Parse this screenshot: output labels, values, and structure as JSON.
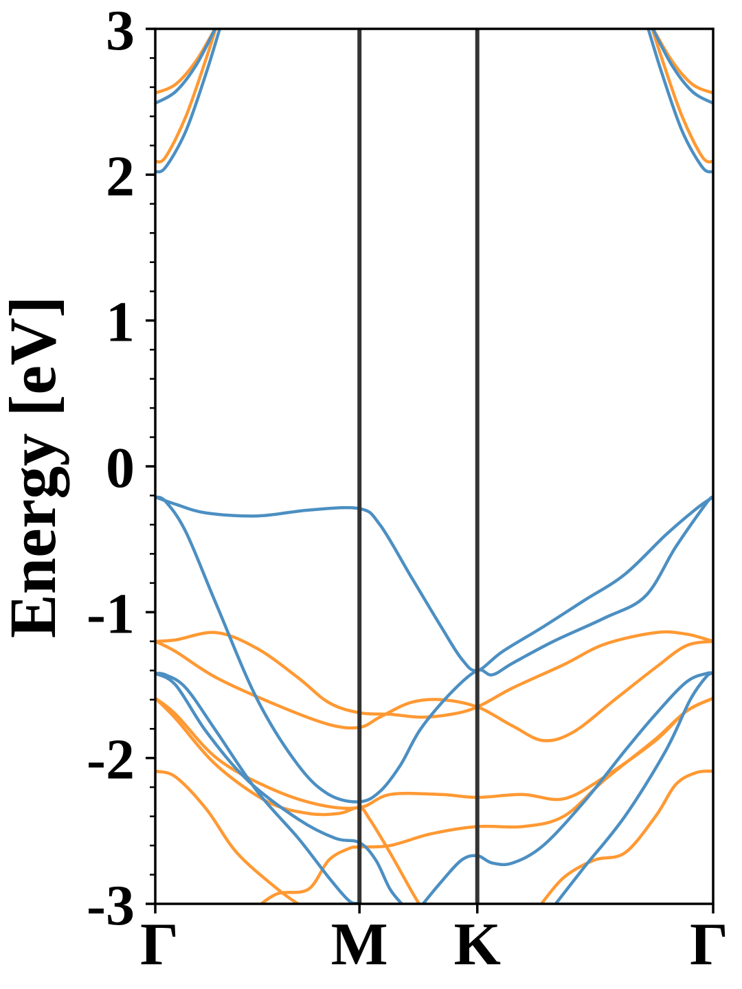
{
  "chart_data": {
    "type": "line",
    "title": "",
    "xlabel": "",
    "ylabel": "Energy [eV]",
    "ylim": [
      -3,
      3
    ],
    "yticks": [
      "-3",
      "-2",
      "-1",
      "0",
      "1",
      "2",
      "3"
    ],
    "kpath": {
      "labels": [
        "Γ",
        "M",
        "K",
        "Γ"
      ],
      "positions": [
        0,
        1,
        1.577,
        2.732
      ]
    },
    "colors": {
      "blue": "#4c8fc2",
      "orange": "#ff9933",
      "frame": "#000000",
      "kline": "#333333"
    },
    "bands_blue": [
      [
        [
          0,
          -0.21
        ],
        [
          0.1,
          -0.26
        ],
        [
          0.25,
          -0.32
        ],
        [
          0.5,
          -0.34
        ],
        [
          0.75,
          -0.3
        ],
        [
          1,
          -0.29
        ],
        [
          1.1,
          -0.4
        ],
        [
          1.25,
          -0.75
        ],
        [
          1.4,
          -1.1
        ],
        [
          1.5,
          -1.32
        ],
        [
          1.577,
          -1.4
        ],
        [
          1.7,
          -1.27
        ],
        [
          1.9,
          -1.1
        ],
        [
          2.1,
          -0.92
        ],
        [
          2.3,
          -0.74
        ],
        [
          2.5,
          -0.47
        ],
        [
          2.65,
          -0.29
        ],
        [
          2.732,
          -0.21
        ]
      ],
      [
        [
          0,
          -0.21
        ],
        [
          0.05,
          -0.24
        ],
        [
          0.15,
          -0.45
        ],
        [
          0.3,
          -0.95
        ],
        [
          0.5,
          -1.6
        ],
        [
          0.7,
          -2.05
        ],
        [
          0.85,
          -2.25
        ],
        [
          1,
          -2.3
        ],
        [
          1.1,
          -2.23
        ],
        [
          1.2,
          -2.05
        ],
        [
          1.3,
          -1.8
        ],
        [
          1.45,
          -1.55
        ],
        [
          1.577,
          -1.4
        ],
        [
          1.65,
          -1.43
        ],
        [
          1.75,
          -1.35
        ],
        [
          1.95,
          -1.2
        ],
        [
          2.2,
          -1.04
        ],
        [
          2.4,
          -0.89
        ],
        [
          2.55,
          -0.55
        ],
        [
          2.7,
          -0.25
        ],
        [
          2.732,
          -0.21
        ]
      ],
      [
        [
          0,
          -1.42
        ],
        [
          0.05,
          -1.43
        ],
        [
          0.15,
          -1.52
        ],
        [
          0.3,
          -1.82
        ],
        [
          0.5,
          -2.23
        ],
        [
          0.7,
          -2.55
        ],
        [
          0.85,
          -2.82
        ],
        [
          0.95,
          -2.98
        ],
        [
          1,
          -3.0
        ],
        [
          1.02,
          -3.05
        ]
      ],
      [
        [
          0,
          -1.42
        ],
        [
          0.1,
          -1.5
        ],
        [
          0.25,
          -1.82
        ],
        [
          0.45,
          -2.15
        ],
        [
          0.7,
          -2.42
        ],
        [
          0.88,
          -2.55
        ],
        [
          1,
          -2.58
        ],
        [
          1.08,
          -2.7
        ],
        [
          1.15,
          -2.9
        ],
        [
          1.22,
          -3.02
        ]
      ],
      [
        [
          1.3,
          -3.02
        ],
        [
          1.4,
          -2.85
        ],
        [
          1.5,
          -2.7
        ],
        [
          1.577,
          -2.67
        ],
        [
          1.65,
          -2.72
        ],
        [
          1.75,
          -2.72
        ],
        [
          1.9,
          -2.6
        ],
        [
          2.1,
          -2.3
        ],
        [
          2.3,
          -1.95
        ],
        [
          2.45,
          -1.7
        ],
        [
          2.6,
          -1.48
        ],
        [
          2.7,
          -1.42
        ],
        [
          2.732,
          -1.42
        ]
      ],
      [
        [
          1.95,
          -3.02
        ],
        [
          2.1,
          -2.75
        ],
        [
          2.3,
          -2.4
        ],
        [
          2.5,
          -1.95
        ],
        [
          2.62,
          -1.6
        ],
        [
          2.7,
          -1.44
        ],
        [
          2.732,
          -1.42
        ]
      ],
      [
        [
          0,
          2.02
        ],
        [
          0.05,
          2.05
        ],
        [
          0.15,
          2.3
        ],
        [
          0.25,
          2.7
        ],
        [
          0.32,
          3.02
        ]
      ],
      [
        [
          0,
          2.49
        ],
        [
          0.1,
          2.57
        ],
        [
          0.2,
          2.75
        ],
        [
          0.3,
          3.02
        ]
      ],
      [
        [
          2.732,
          2.02
        ],
        [
          2.68,
          2.05
        ],
        [
          2.58,
          2.3
        ],
        [
          2.48,
          2.7
        ],
        [
          2.41,
          3.02
        ]
      ],
      [
        [
          2.732,
          2.49
        ],
        [
          2.63,
          2.57
        ],
        [
          2.53,
          2.75
        ],
        [
          2.43,
          3.02
        ]
      ]
    ],
    "bands_orange": [
      [
        [
          0,
          -1.2
        ],
        [
          0.1,
          -1.19
        ],
        [
          0.3,
          -1.14
        ],
        [
          0.5,
          -1.25
        ],
        [
          0.7,
          -1.45
        ],
        [
          0.85,
          -1.62
        ],
        [
          1,
          -1.69
        ],
        [
          1.15,
          -1.7
        ],
        [
          1.3,
          -1.72
        ],
        [
          1.45,
          -1.7
        ],
        [
          1.577,
          -1.65
        ],
        [
          1.75,
          -1.52
        ],
        [
          2.0,
          -1.36
        ],
        [
          2.2,
          -1.22
        ],
        [
          2.45,
          -1.14
        ],
        [
          2.6,
          -1.15
        ],
        [
          2.732,
          -1.2
        ]
      ],
      [
        [
          0,
          -1.2
        ],
        [
          0.1,
          -1.27
        ],
        [
          0.3,
          -1.45
        ],
        [
          0.6,
          -1.64
        ],
        [
          0.85,
          -1.77
        ],
        [
          1,
          -1.79
        ],
        [
          1.1,
          -1.72
        ],
        [
          1.25,
          -1.62
        ],
        [
          1.4,
          -1.6
        ],
        [
          1.577,
          -1.65
        ],
        [
          1.75,
          -1.78
        ],
        [
          1.9,
          -1.88
        ],
        [
          2.05,
          -1.82
        ],
        [
          2.25,
          -1.6
        ],
        [
          2.45,
          -1.38
        ],
        [
          2.6,
          -1.23
        ],
        [
          2.732,
          -1.2
        ]
      ],
      [
        [
          0,
          -1.59
        ],
        [
          0.1,
          -1.7
        ],
        [
          0.3,
          -2.0
        ],
        [
          0.55,
          -2.2
        ],
        [
          0.8,
          -2.32
        ],
        [
          1,
          -2.34
        ],
        [
          1.15,
          -2.25
        ],
        [
          1.4,
          -2.25
        ],
        [
          1.577,
          -2.27
        ],
        [
          1.8,
          -2.25
        ],
        [
          2.0,
          -2.28
        ],
        [
          2.2,
          -2.13
        ],
        [
          2.45,
          -1.88
        ],
        [
          2.6,
          -1.68
        ],
        [
          2.732,
          -1.59
        ]
      ],
      [
        [
          0,
          -1.59
        ],
        [
          0.1,
          -1.73
        ],
        [
          0.3,
          -2.05
        ],
        [
          0.55,
          -2.3
        ],
        [
          0.75,
          -2.38
        ],
        [
          0.9,
          -2.38
        ],
        [
          1,
          -2.34
        ],
        [
          1.05,
          -2.42
        ],
        [
          1.15,
          -2.65
        ],
        [
          1.25,
          -2.9
        ],
        [
          1.3,
          -3.02
        ]
      ],
      [
        [
          0.5,
          -3.02
        ],
        [
          0.6,
          -2.93
        ],
        [
          0.75,
          -2.9
        ],
        [
          0.85,
          -2.7
        ],
        [
          0.95,
          -2.62
        ],
        [
          1,
          -2.61
        ],
        [
          1.15,
          -2.6
        ],
        [
          1.35,
          -2.52
        ],
        [
          1.577,
          -2.47
        ],
        [
          1.8,
          -2.47
        ],
        [
          2.0,
          -2.4
        ],
        [
          2.2,
          -2.15
        ],
        [
          2.45,
          -1.87
        ],
        [
          2.6,
          -1.68
        ],
        [
          2.732,
          -1.59
        ]
      ],
      [
        [
          0,
          -2.09
        ],
        [
          0.1,
          -2.13
        ],
        [
          0.25,
          -2.35
        ],
        [
          0.4,
          -2.65
        ],
        [
          0.6,
          -2.9
        ],
        [
          0.72,
          -3.02
        ]
      ],
      [
        [
          1.88,
          -3.02
        ],
        [
          2.0,
          -2.82
        ],
        [
          2.15,
          -2.7
        ],
        [
          2.3,
          -2.65
        ],
        [
          2.45,
          -2.4
        ],
        [
          2.55,
          -2.18
        ],
        [
          2.65,
          -2.1
        ],
        [
          2.732,
          -2.09
        ]
      ],
      [
        [
          0,
          2.09
        ],
        [
          0.05,
          2.12
        ],
        [
          0.15,
          2.4
        ],
        [
          0.25,
          2.8
        ],
        [
          0.3,
          3.02
        ]
      ],
      [
        [
          0,
          2.56
        ],
        [
          0.1,
          2.62
        ],
        [
          0.2,
          2.78
        ],
        [
          0.3,
          3.02
        ]
      ],
      [
        [
          2.732,
          2.09
        ],
        [
          2.68,
          2.12
        ],
        [
          2.58,
          2.4
        ],
        [
          2.48,
          2.8
        ],
        [
          2.43,
          3.02
        ]
      ],
      [
        [
          2.732,
          2.56
        ],
        [
          2.63,
          2.62
        ],
        [
          2.53,
          2.78
        ],
        [
          2.43,
          3.02
        ]
      ]
    ],
    "grid": false,
    "legend": "none"
  }
}
